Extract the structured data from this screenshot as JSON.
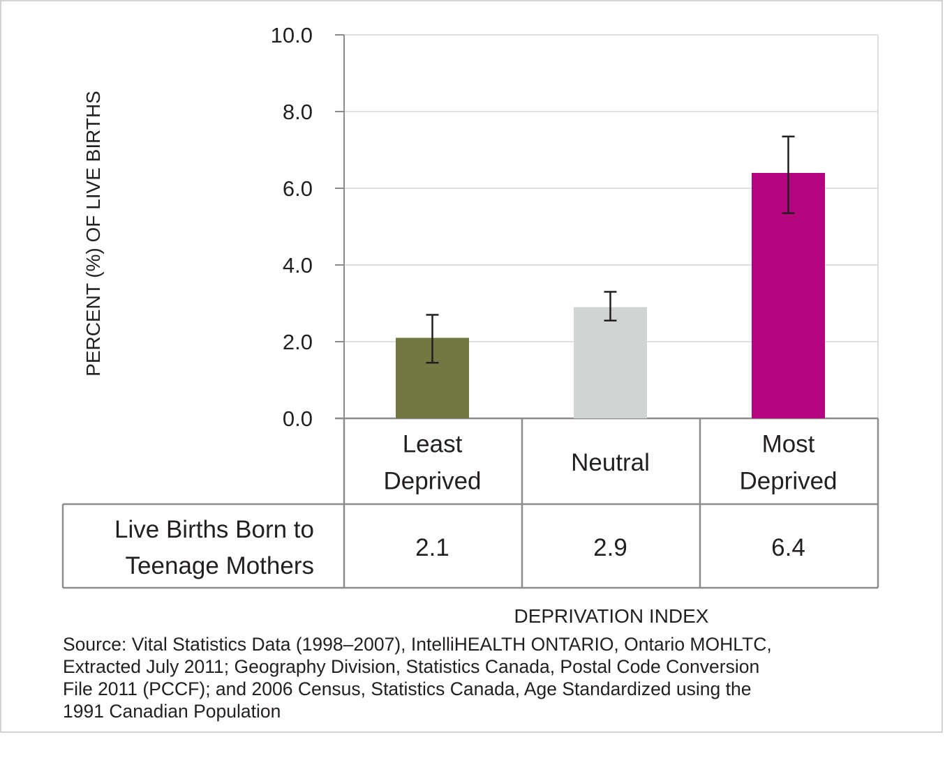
{
  "chart_data": {
    "type": "bar",
    "categories": [
      [
        "Least",
        "Deprived"
      ],
      [
        "Neutral"
      ],
      [
        "Most",
        "Deprived"
      ]
    ],
    "series": [
      {
        "name": "Live Births Born to Teenage Mothers",
        "values": [
          2.1,
          2.9,
          6.4
        ],
        "value_labels": [
          "2.1",
          "2.9",
          "6.4"
        ],
        "error_low": [
          1.45,
          2.55,
          5.35
        ],
        "error_high": [
          2.7,
          3.3,
          7.35
        ],
        "colors": [
          "#737843",
          "#d0d5d4",
          "#b4057f"
        ]
      }
    ],
    "ylim": [
      0,
      10
    ],
    "yticks": [
      "0.0",
      "2.0",
      "4.0",
      "6.0",
      "8.0",
      "10.0"
    ],
    "ytick_values": [
      0,
      2,
      4,
      6,
      8,
      10
    ],
    "ylabel": "PERCENT (%) OF  LIVE BIRTHS",
    "xlabel": "DEPRIVATION INDEX",
    "grid": true,
    "row_label": [
      "Live Births Born to",
      "Teenage Mothers"
    ]
  },
  "source_text": "Source: Vital Statistics Data (1998–2007), IntelliHEALTH ONTARIO, Ontario MOHLTC,\nExtracted July 2011; Geography Division, Statistics Canada, Postal Code Conversion\nFile 2011 (PCCF); and 2006 Census, Statistics Canada, Age Standardized using the\n1991 Canadian Population"
}
